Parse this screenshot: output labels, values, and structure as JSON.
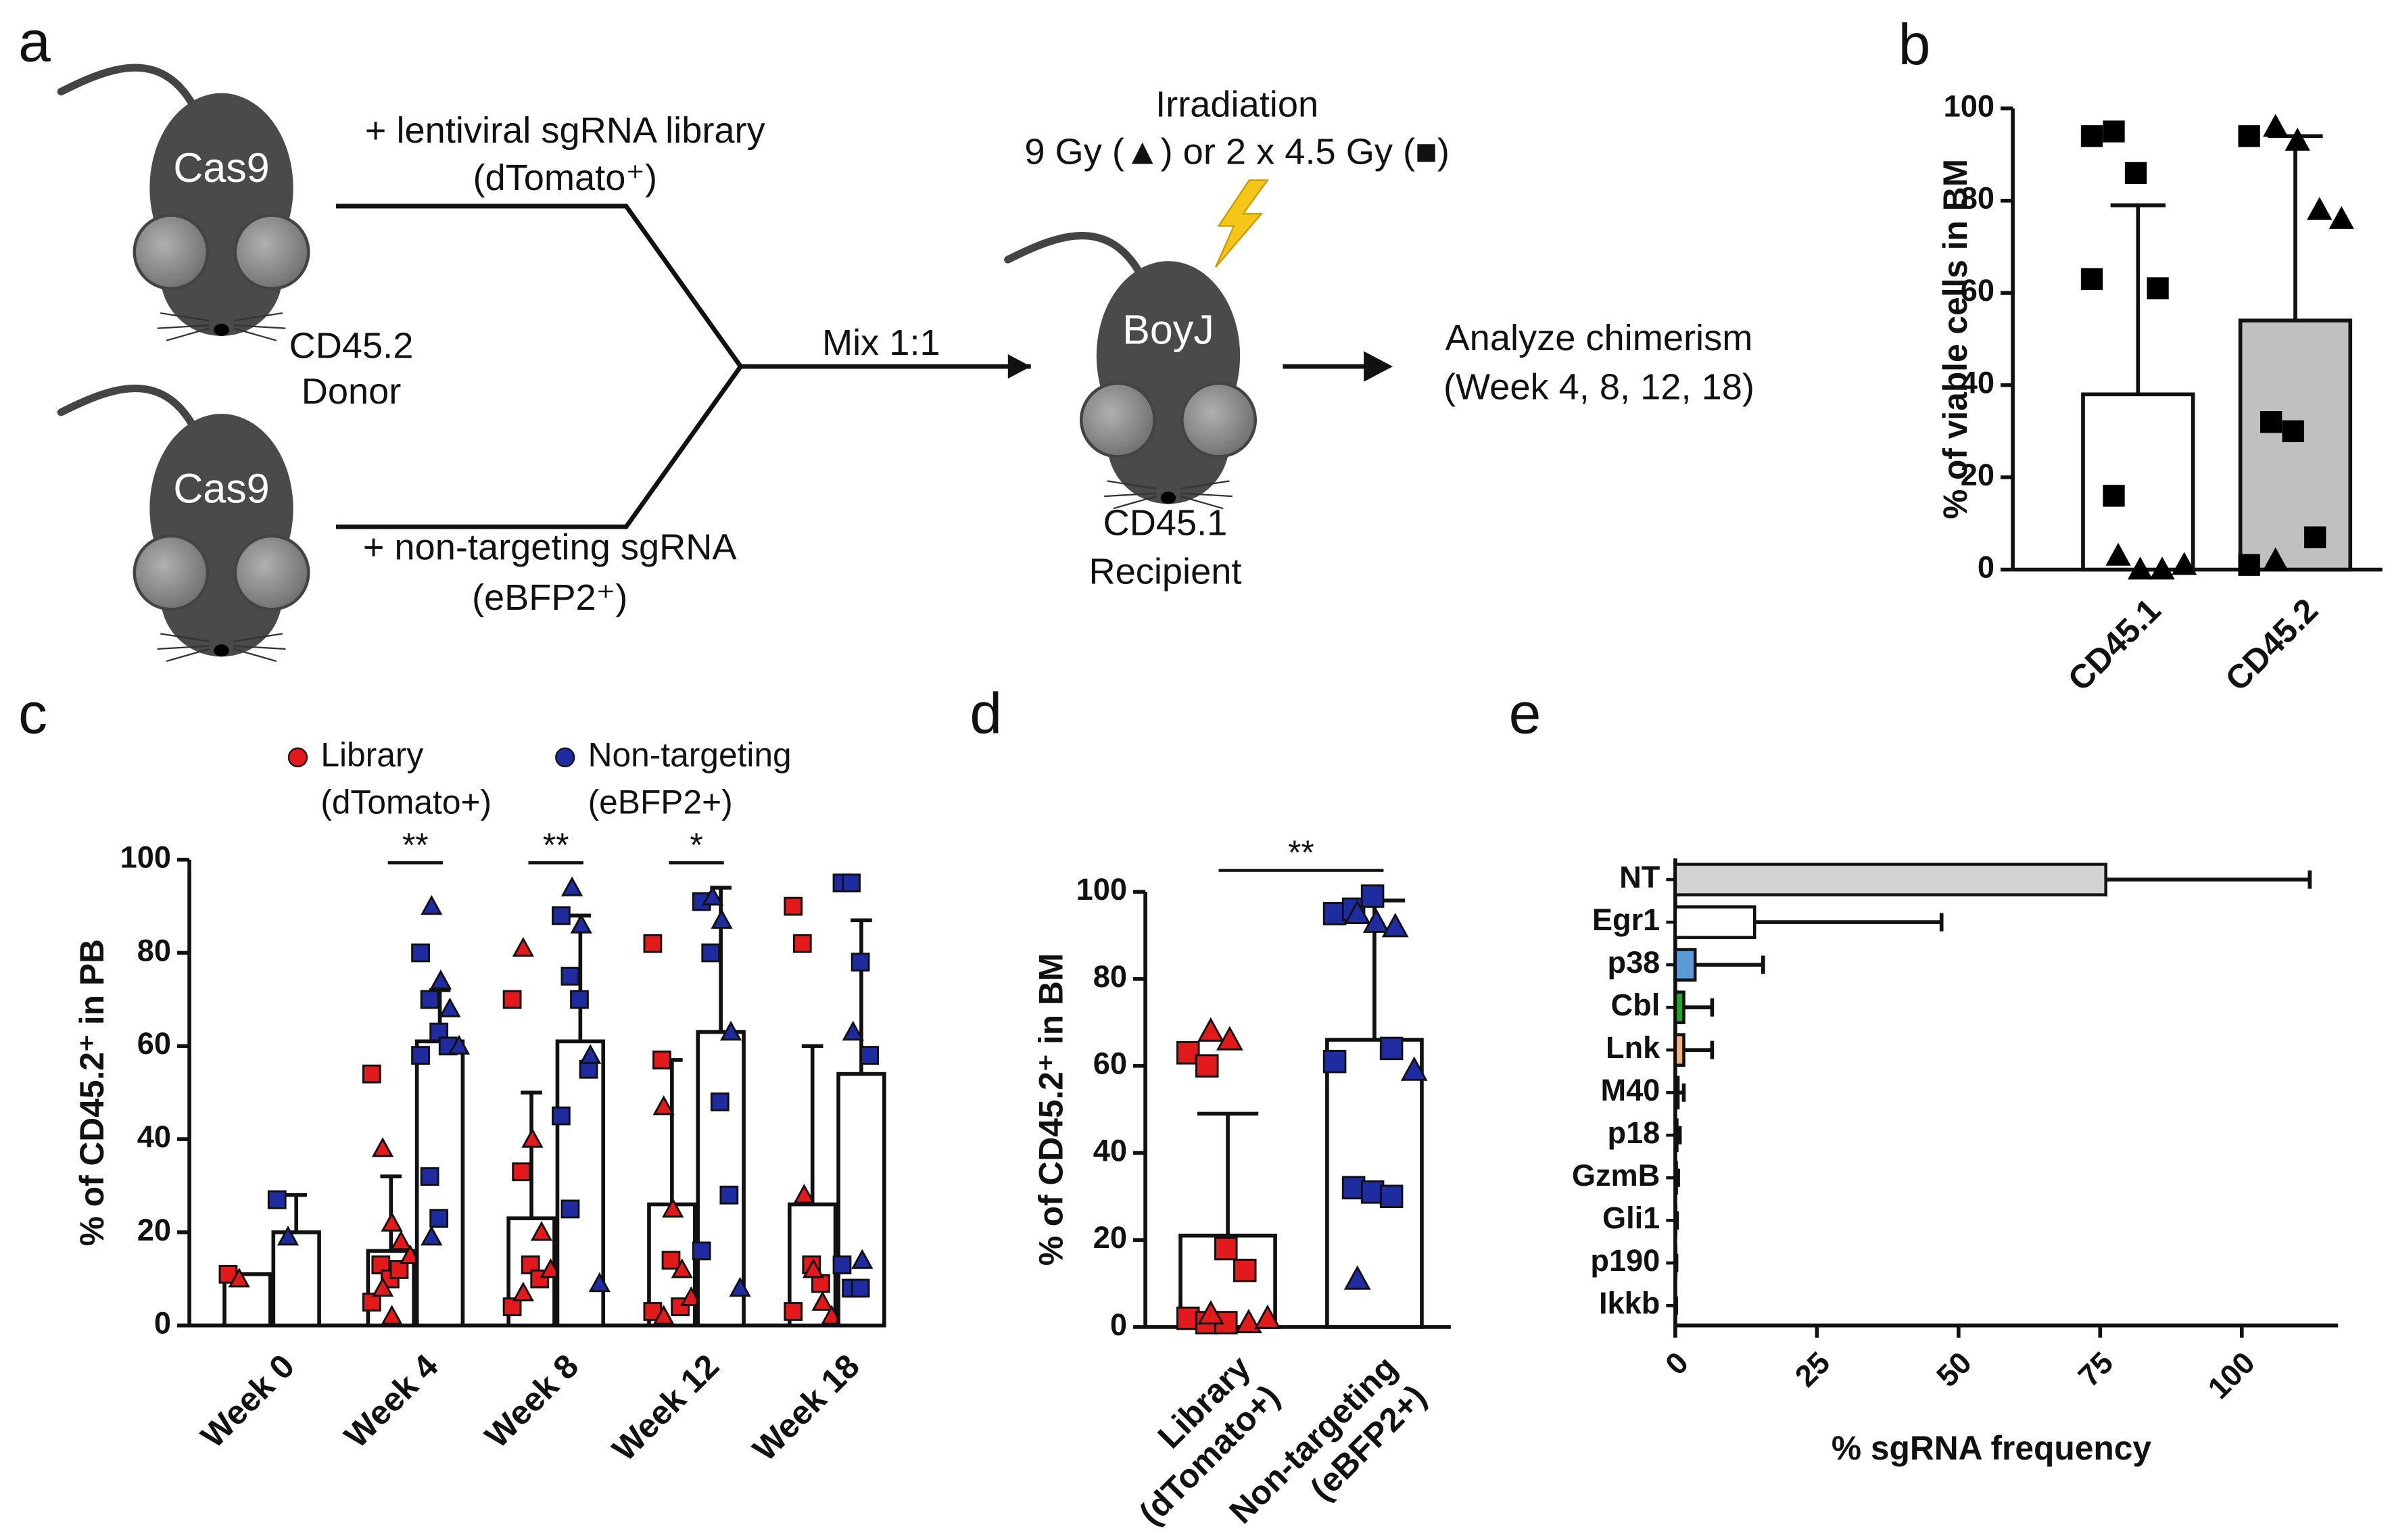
{
  "panel_labels": [
    "a",
    "b",
    "c",
    "d",
    "e"
  ],
  "diagram": {
    "donor_top": "Cas9",
    "donor_bottom": "Cas9",
    "donor_label": [
      "CD45.2",
      "Donor"
    ],
    "library": [
      "+ lentiviral sgRNA library",
      "(dTomato⁺)"
    ],
    "control": [
      "+ non-targeting sgRNA",
      "(eBFP2⁺)"
    ],
    "mix": "Mix 1:1",
    "irradiation": [
      "Irradiation",
      "9 Gy (▲) or 2 x 4.5 Gy (■)"
    ],
    "recipient": "BoyJ",
    "recipient_label": [
      "CD45.1",
      "Recipient"
    ],
    "analysis": [
      "Analyze chimerism",
      "(Week 4, 8, 12, 18)"
    ]
  },
  "chart_data": [
    {
      "type": "bar",
      "ylabel": "% of viable cells in BM",
      "categories": [
        "CD45.1",
        "CD45.2"
      ],
      "values": [
        38,
        54
      ],
      "errors": [
        41,
        40
      ],
      "bar_colors": [
        "#ffffff",
        "#c0c0c0"
      ],
      "point_colors": [
        "#000000",
        "#000000"
      ],
      "points": [
        {
          "squares": [
            94,
            95,
            86,
            61,
            63,
            16
          ],
          "triangles": [
            3,
            0,
            0,
            1
          ]
        },
        {
          "squares": [
            94,
            32,
            30,
            7,
            1
          ],
          "triangles": [
            96,
            93,
            78,
            76,
            2
          ]
        }
      ],
      "ylim": [
        0,
        100
      ],
      "yticks": [
        0,
        20,
        40,
        60,
        80,
        100
      ]
    },
    {
      "type": "bar",
      "ylabel": "% of CD45.2⁺ in PB",
      "categories": [
        "Week 0",
        "Week 4",
        "Week 8",
        "Week 12",
        "Week 18"
      ],
      "bar_color": "#ffffff",
      "series": [
        {
          "name": "Library",
          "note": "(dTomato+)",
          "color": "#e31a1c",
          "values": [
            11,
            16,
            23,
            26,
            26
          ],
          "errors": [
            null,
            16,
            27,
            31,
            34
          ],
          "points": [
            {
              "squares": [
                11
              ],
              "triangles": [
                10
              ]
            },
            {
              "squares": [
                54,
                13,
                10,
                12,
                5
              ],
              "triangles": [
                38,
                22,
                18,
                15,
                8,
                2
              ]
            },
            {
              "squares": [
                70,
                33,
                13,
                10,
                4
              ],
              "triangles": [
                81,
                40,
                20,
                12,
                7
              ]
            },
            {
              "squares": [
                82,
                57,
                14,
                4,
                3
              ],
              "triangles": [
                47,
                25,
                12,
                6,
                2
              ]
            },
            {
              "squares": [
                90,
                82,
                13,
                9,
                3
              ],
              "triangles": [
                28,
                12,
                5,
                2
              ]
            }
          ]
        },
        {
          "name": "Non-targeting",
          "note": "(eBFP2+)",
          "color": "#1f2ca0",
          "values": [
            20,
            61,
            61,
            63,
            54
          ],
          "errors": [
            8,
            11,
            27,
            31,
            33
          ],
          "points": [
            {
              "squares": [
                27
              ],
              "triangles": [
                19
              ]
            },
            {
              "squares": [
                80,
                70,
                63,
                60,
                58,
                32,
                23
              ],
              "triangles": [
                90,
                74,
                68,
                60,
                19
              ]
            },
            {
              "squares": [
                88,
                75,
                70,
                55,
                45,
                25
              ],
              "triangles": [
                94,
                86,
                58,
                9
              ]
            },
            {
              "squares": [
                91,
                80,
                48,
                28,
                16
              ],
              "triangles": [
                92,
                87,
                63,
                8
              ]
            },
            {
              "squares": [
                95,
                95,
                78,
                58,
                13,
                8,
                8
              ],
              "triangles": [
                63,
                14
              ]
            }
          ]
        }
      ],
      "significance": [
        {
          "category": "Week 4",
          "label": "**"
        },
        {
          "category": "Week 8",
          "label": "**"
        },
        {
          "category": "Week 12",
          "label": "*"
        }
      ],
      "ylim": [
        0,
        100
      ],
      "yticks": [
        0,
        20,
        40,
        60,
        80,
        100
      ]
    },
    {
      "type": "bar",
      "ylabel": "% of CD45.2⁺ in BM",
      "categories": [
        [
          "Library",
          "(dTomato+)"
        ],
        [
          "Non-targeting",
          "(eBFP2+)"
        ]
      ],
      "values": [
        21,
        66
      ],
      "errors": [
        28,
        32
      ],
      "bar_colors": [
        "#ffffff",
        "#ffffff"
      ],
      "point_colors": [
        "#e31a1c",
        "#1f2ca0"
      ],
      "points": [
        {
          "squares": [
            63,
            60,
            18,
            13,
            2,
            1,
            1
          ],
          "triangles": [
            68,
            66,
            1,
            2,
            3
          ]
        },
        {
          "squares": [
            95,
            96,
            99,
            64,
            61,
            32,
            31,
            30
          ],
          "triangles": [
            95,
            93,
            92,
            59,
            11
          ]
        }
      ],
      "significance": [
        {
          "label": "**"
        }
      ],
      "ylim": [
        0,
        100
      ],
      "yticks": [
        0,
        20,
        40,
        60,
        80,
        100
      ]
    },
    {
      "type": "hbar",
      "xlabel": "% sgRNA frequency",
      "categories": [
        "NT",
        "Egr1",
        "p38",
        "Cbl",
        "Lnk",
        "M40",
        "p18",
        "GzmB",
        "Gli1",
        "p190",
        "Ikkb"
      ],
      "values": [
        76,
        14,
        3.5,
        1.5,
        1.5,
        0.5,
        0.3,
        0.2,
        0.1,
        0.1,
        0.05
      ],
      "errors": [
        36,
        33,
        12,
        5,
        5,
        1,
        0.5,
        0.3,
        0.2,
        0.1,
        0.1
      ],
      "colors": [
        "#d3d3d3",
        "#ffffff",
        "#5b9bd5",
        "#2ca02c",
        "#f4b183",
        "#ffffff",
        "#ffffff",
        "#ffffff",
        "#ffffff",
        "#ffffff",
        "#ffffff"
      ],
      "xlim": [
        0,
        117
      ],
      "xticks": [
        0,
        25,
        50,
        75,
        100
      ]
    }
  ]
}
